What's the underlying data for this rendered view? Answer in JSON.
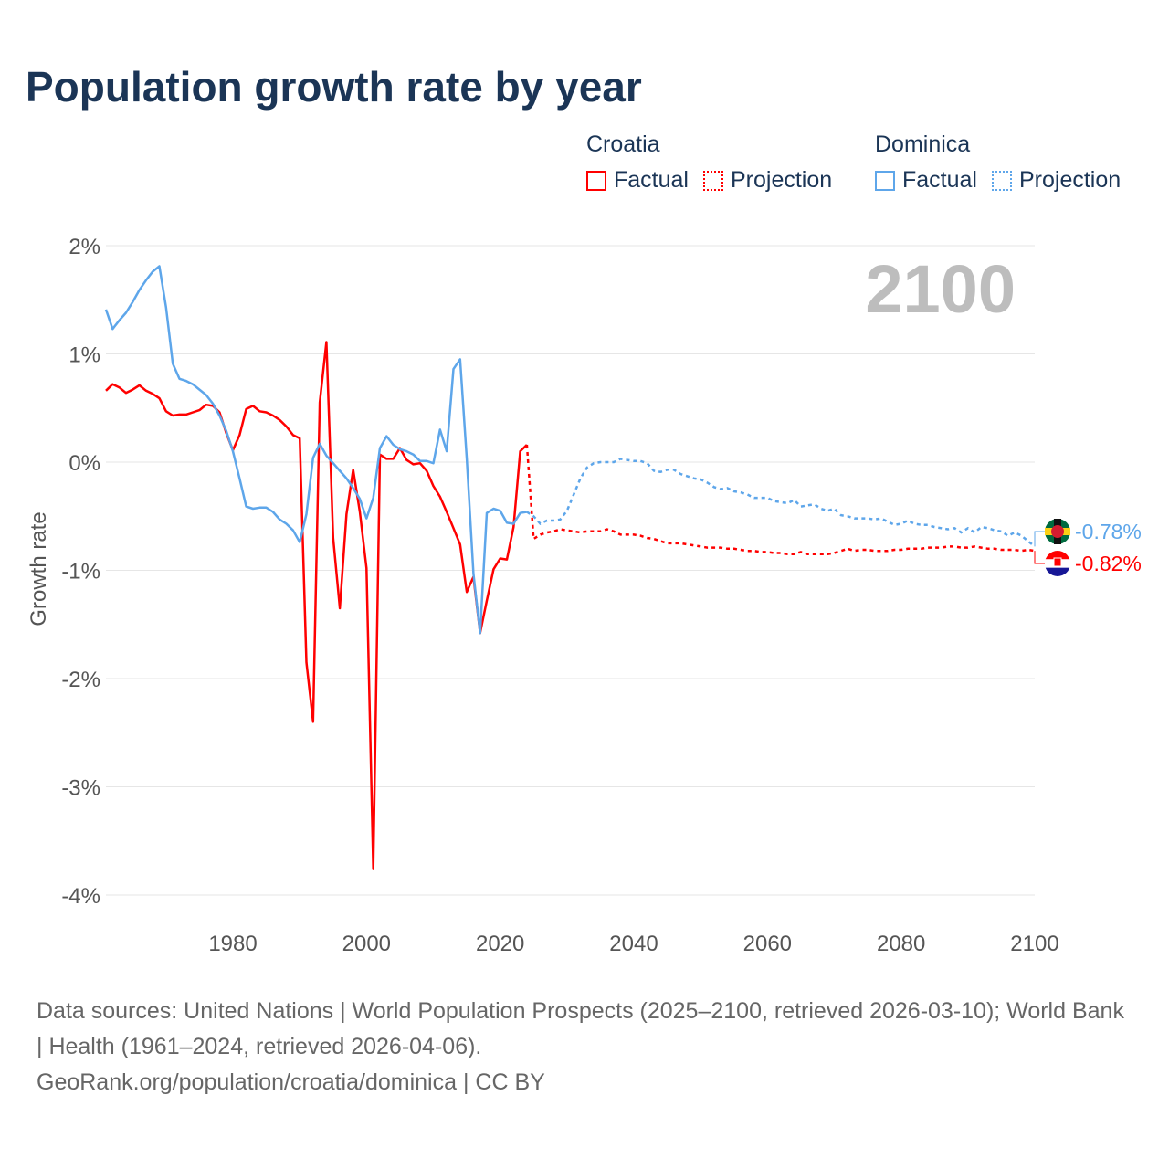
{
  "title": "Population growth rate by year",
  "legend": [
    {
      "country": "Croatia",
      "color": "#ff0000",
      "factual": "Factual",
      "projection": "Projection"
    },
    {
      "country": "Dominica",
      "color": "#5ea6ea",
      "factual": "Factual",
      "projection": "Projection"
    }
  ],
  "footer": {
    "sources": "Data sources: United Nations | World Population Prospects (2025–2100, retrieved 2026-03-10); World Bank | Health (1961–2024, retrieved 2026-04-06).",
    "credit": "GeoRank.org/population/croatia/dominica | CC BY"
  },
  "chart_data": {
    "type": "line",
    "title": "Population growth rate by year",
    "ylabel": "Growth rate",
    "xlabel": "",
    "year_label": "2100",
    "xlim": [
      1961,
      2100
    ],
    "ylim": [
      -4,
      2
    ],
    "x_ticks": [
      "1980",
      "2000",
      "2020",
      "2040",
      "2060",
      "2080",
      "2100"
    ],
    "y_ticks": [
      "2%",
      "1%",
      "0%",
      "-1%",
      "-2%",
      "-3%",
      "-4%"
    ],
    "grid": true,
    "factual_start": 1961,
    "projection_start": 2025,
    "series": [
      {
        "name": "Croatia",
        "color": "#ff0000",
        "end_label": "-0.82%",
        "factual": [
          0.66,
          0.72,
          0.69,
          0.64,
          0.67,
          0.71,
          0.66,
          0.63,
          0.59,
          0.47,
          0.43,
          0.44,
          0.44,
          0.46,
          0.48,
          0.53,
          0.52,
          0.46,
          0.27,
          0.11,
          0.25,
          0.49,
          0.52,
          0.47,
          0.46,
          0.43,
          0.39,
          0.33,
          0.25,
          0.22,
          -1.85,
          -2.4,
          0.55,
          1.11,
          -0.7,
          -1.35,
          -0.48,
          -0.07,
          -0.46,
          -0.98,
          -3.76,
          0.07,
          0.03,
          0.03,
          0.13,
          0.02,
          -0.02,
          -0.01,
          -0.08,
          -0.22,
          -0.32,
          -0.46,
          -0.61,
          -0.76,
          -1.2,
          -1.06,
          -1.58,
          -1.28,
          -0.99,
          -0.89,
          -0.9,
          -0.6,
          0.1,
          0.16
        ],
        "projection": [
          -0.71,
          -0.67,
          -0.65,
          -0.64,
          -0.62,
          -0.63,
          -0.64,
          -0.65,
          -0.64,
          -0.64,
          -0.64,
          -0.62,
          -0.64,
          -0.67,
          -0.67,
          -0.67,
          -0.68,
          -0.7,
          -0.71,
          -0.73,
          -0.75,
          -0.75,
          -0.75,
          -0.76,
          -0.77,
          -0.78,
          -0.79,
          -0.79,
          -0.79,
          -0.8,
          -0.8,
          -0.81,
          -0.82,
          -0.82,
          -0.83,
          -0.83,
          -0.84,
          -0.84,
          -0.85,
          -0.85,
          -0.83,
          -0.85,
          -0.85,
          -0.85,
          -0.85,
          -0.84,
          -0.82,
          -0.8,
          -0.82,
          -0.81,
          -0.81,
          -0.82,
          -0.82,
          -0.82,
          -0.81,
          -0.81,
          -0.8,
          -0.8,
          -0.8,
          -0.79,
          -0.79,
          -0.79,
          -0.78,
          -0.78,
          -0.79,
          -0.79,
          -0.78,
          -0.79,
          -0.8,
          -0.8,
          -0.81,
          -0.81,
          -0.81,
          -0.82,
          -0.81,
          -0.82
        ]
      },
      {
        "name": "Dominica",
        "color": "#5ea6ea",
        "end_label": "-0.78%",
        "factual": [
          1.41,
          1.23,
          1.31,
          1.38,
          1.48,
          1.59,
          1.68,
          1.76,
          1.81,
          1.43,
          0.91,
          0.77,
          0.75,
          0.72,
          0.67,
          0.62,
          0.54,
          0.43,
          0.29,
          0.1,
          -0.15,
          -0.41,
          -0.43,
          -0.42,
          -0.42,
          -0.46,
          -0.53,
          -0.57,
          -0.63,
          -0.74,
          -0.48,
          0.04,
          0.17,
          0.06,
          -0.01,
          -0.08,
          -0.15,
          -0.24,
          -0.34,
          -0.52,
          -0.33,
          0.13,
          0.24,
          0.16,
          0.12,
          0.1,
          0.07,
          0.01,
          0.01,
          -0.01,
          0.3,
          0.1,
          0.86,
          0.95,
          0.03,
          -1.03,
          -1.58,
          -0.47,
          -0.43,
          -0.45,
          -0.56,
          -0.57,
          -0.47,
          -0.46
        ],
        "projection": [
          -0.5,
          -0.57,
          -0.54,
          -0.54,
          -0.53,
          -0.45,
          -0.3,
          -0.15,
          -0.05,
          -0.01,
          0.0,
          0.0,
          0.0,
          0.03,
          0.02,
          0.01,
          0.01,
          -0.01,
          -0.08,
          -0.09,
          -0.07,
          -0.07,
          -0.11,
          -0.13,
          -0.15,
          -0.16,
          -0.19,
          -0.23,
          -0.25,
          -0.24,
          -0.27,
          -0.28,
          -0.3,
          -0.33,
          -0.33,
          -0.33,
          -0.36,
          -0.37,
          -0.38,
          -0.35,
          -0.41,
          -0.4,
          -0.39,
          -0.43,
          -0.45,
          -0.43,
          -0.49,
          -0.5,
          -0.52,
          -0.52,
          -0.52,
          -0.53,
          -0.52,
          -0.55,
          -0.58,
          -0.57,
          -0.54,
          -0.57,
          -0.58,
          -0.58,
          -0.6,
          -0.61,
          -0.62,
          -0.61,
          -0.65,
          -0.61,
          -0.65,
          -0.6,
          -0.61,
          -0.63,
          -0.64,
          -0.68,
          -0.65,
          -0.68,
          -0.73,
          -0.78
        ]
      }
    ]
  }
}
